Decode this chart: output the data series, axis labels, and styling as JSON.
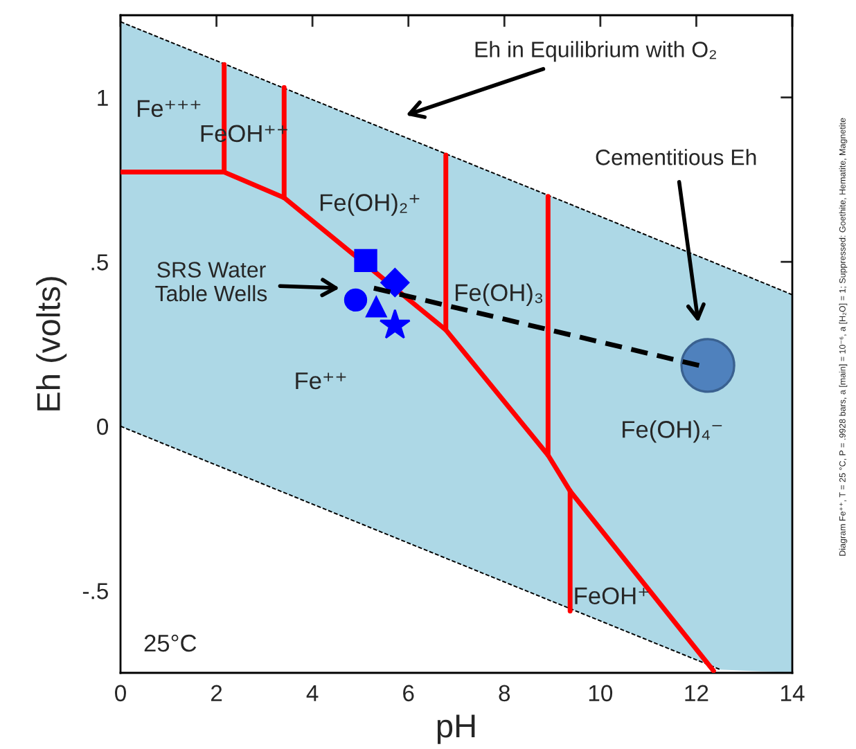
{
  "chart_data": {
    "type": "line",
    "xlabel": "pH",
    "ylabel": "Eh (volts)",
    "xlim": [
      0,
      14
    ],
    "xticks": [
      0,
      2,
      4,
      6,
      8,
      10,
      12,
      14
    ],
    "ylim": [
      -0.75,
      1.25
    ],
    "yticks": [
      {
        "value": -0.5,
        "label": "-.5"
      },
      0,
      {
        "value": 0.5,
        "label": ".5"
      },
      1
    ],
    "grid": false,
    "legend": false,
    "series": [
      {
        "color": "#000000",
        "line_style": "dotted",
        "x": [
          0,
          12.5,
          14
        ],
        "values": [
          1.23,
          0.49,
          0.4
        ],
        "lower": [
          0,
          -0.74,
          -0.75
        ],
        "upper": [
          1.23,
          0.49,
          0.4
        ]
      },
      {
        "color": "#000000",
        "line_style": "dotted",
        "x": [
          0,
          12.5
        ],
        "values": [
          0,
          -0.74
        ]
      },
      {
        "color": "#ff0000",
        "x": [
          0,
          2.16,
          3.41,
          6.78,
          8.91,
          9.37,
          12.36
        ],
        "values": [
          0.773,
          0.773,
          0.695,
          0.293,
          -0.088,
          -0.197,
          -0.744
        ]
      },
      {
        "color": "#ff0000",
        "x": [
          2.16,
          2.16
        ],
        "values": [
          1.1,
          0.773
        ]
      },
      {
        "color": "#ff0000",
        "x": [
          3.41,
          3.41
        ],
        "values": [
          1.03,
          0.695
        ]
      },
      {
        "color": "#ff0000",
        "x": [
          6.78,
          6.78
        ],
        "values": [
          0.825,
          0.293
        ]
      },
      {
        "color": "#ff0000",
        "x": [
          8.91,
          8.91
        ],
        "values": [
          0.699,
          -0.088
        ]
      },
      {
        "color": "#ff0000",
        "x": [
          9.37,
          9.37
        ],
        "values": [
          -0.197,
          -0.562
        ]
      },
      {
        "color": "#000000",
        "line_style": "dashed",
        "x": [
          5.28,
          12.11
        ],
        "values": [
          0.42,
          0.183
        ]
      },
      {
        "type": "scatter",
        "color": "#0000ff",
        "marker": "square",
        "x": [
          5.11
        ],
        "values": [
          0.504
        ]
      },
      {
        "type": "scatter",
        "color": "#0000ff",
        "marker": "diamond",
        "x": [
          5.72
        ],
        "values": [
          0.437
        ]
      },
      {
        "type": "scatter",
        "color": "#0000ff",
        "marker": "circle",
        "x": [
          4.9
        ],
        "values": [
          0.384
        ]
      },
      {
        "type": "scatter",
        "color": "#0000ff",
        "marker": "triangle",
        "x": [
          5.33
        ],
        "values": [
          0.363
        ]
      },
      {
        "type": "scatter",
        "color": "#0000ff",
        "marker": "star",
        "x": [
          5.72
        ],
        "values": [
          0.307
        ]
      },
      {
        "type": "bubble",
        "color": "#4f81bd",
        "x": [
          12.24
        ],
        "values": [
          0.185
        ],
        "sizes": [
          1
        ]
      }
    ],
    "annotations": [
      "Eh in Equilibrium with O₂",
      "SRS Water\nTable Wells",
      "Cementitious Eh",
      "Fe⁺⁺⁺",
      "FeOH⁺⁺",
      "Fe(OH)₂⁺",
      "Fe(OH)₃",
      "Fe⁺⁺",
      "Fe(OH)₄⁻",
      "FeOH⁺",
      "25°C",
      "Diagram Fe⁺⁺, T = 25 °C, P = .9928 bars, a [main] = 10⁻⁶, a [H₂O] = 1; Suppressed: Goethite, Hematite, Magnetite"
    ]
  }
}
